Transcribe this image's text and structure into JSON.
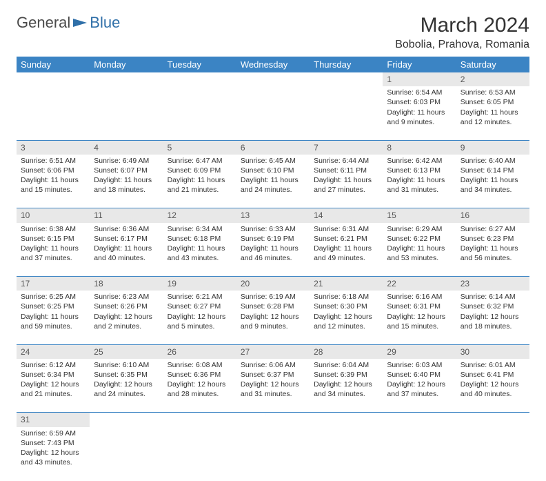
{
  "logo": {
    "text_general": "General",
    "text_blue": "Blue"
  },
  "header": {
    "month_title": "March 2024",
    "location": "Bobolia, Prahova, Romania"
  },
  "colors": {
    "header_bg": "#3b84c4",
    "header_fg": "#ffffff",
    "daynum_bg": "#e8e8e8",
    "row_divider": "#3b84c4",
    "text": "#333333"
  },
  "weekdays": [
    "Sunday",
    "Monday",
    "Tuesday",
    "Wednesday",
    "Thursday",
    "Friday",
    "Saturday"
  ],
  "weeks": [
    [
      null,
      null,
      null,
      null,
      null,
      {
        "n": "1",
        "sr": "Sunrise: 6:54 AM",
        "ss": "Sunset: 6:03 PM",
        "dl": "Daylight: 11 hours and 9 minutes."
      },
      {
        "n": "2",
        "sr": "Sunrise: 6:53 AM",
        "ss": "Sunset: 6:05 PM",
        "dl": "Daylight: 11 hours and 12 minutes."
      }
    ],
    [
      {
        "n": "3",
        "sr": "Sunrise: 6:51 AM",
        "ss": "Sunset: 6:06 PM",
        "dl": "Daylight: 11 hours and 15 minutes."
      },
      {
        "n": "4",
        "sr": "Sunrise: 6:49 AM",
        "ss": "Sunset: 6:07 PM",
        "dl": "Daylight: 11 hours and 18 minutes."
      },
      {
        "n": "5",
        "sr": "Sunrise: 6:47 AM",
        "ss": "Sunset: 6:09 PM",
        "dl": "Daylight: 11 hours and 21 minutes."
      },
      {
        "n": "6",
        "sr": "Sunrise: 6:45 AM",
        "ss": "Sunset: 6:10 PM",
        "dl": "Daylight: 11 hours and 24 minutes."
      },
      {
        "n": "7",
        "sr": "Sunrise: 6:44 AM",
        "ss": "Sunset: 6:11 PM",
        "dl": "Daylight: 11 hours and 27 minutes."
      },
      {
        "n": "8",
        "sr": "Sunrise: 6:42 AM",
        "ss": "Sunset: 6:13 PM",
        "dl": "Daylight: 11 hours and 31 minutes."
      },
      {
        "n": "9",
        "sr": "Sunrise: 6:40 AM",
        "ss": "Sunset: 6:14 PM",
        "dl": "Daylight: 11 hours and 34 minutes."
      }
    ],
    [
      {
        "n": "10",
        "sr": "Sunrise: 6:38 AM",
        "ss": "Sunset: 6:15 PM",
        "dl": "Daylight: 11 hours and 37 minutes."
      },
      {
        "n": "11",
        "sr": "Sunrise: 6:36 AM",
        "ss": "Sunset: 6:17 PM",
        "dl": "Daylight: 11 hours and 40 minutes."
      },
      {
        "n": "12",
        "sr": "Sunrise: 6:34 AM",
        "ss": "Sunset: 6:18 PM",
        "dl": "Daylight: 11 hours and 43 minutes."
      },
      {
        "n": "13",
        "sr": "Sunrise: 6:33 AM",
        "ss": "Sunset: 6:19 PM",
        "dl": "Daylight: 11 hours and 46 minutes."
      },
      {
        "n": "14",
        "sr": "Sunrise: 6:31 AM",
        "ss": "Sunset: 6:21 PM",
        "dl": "Daylight: 11 hours and 49 minutes."
      },
      {
        "n": "15",
        "sr": "Sunrise: 6:29 AM",
        "ss": "Sunset: 6:22 PM",
        "dl": "Daylight: 11 hours and 53 minutes."
      },
      {
        "n": "16",
        "sr": "Sunrise: 6:27 AM",
        "ss": "Sunset: 6:23 PM",
        "dl": "Daylight: 11 hours and 56 minutes."
      }
    ],
    [
      {
        "n": "17",
        "sr": "Sunrise: 6:25 AM",
        "ss": "Sunset: 6:25 PM",
        "dl": "Daylight: 11 hours and 59 minutes."
      },
      {
        "n": "18",
        "sr": "Sunrise: 6:23 AM",
        "ss": "Sunset: 6:26 PM",
        "dl": "Daylight: 12 hours and 2 minutes."
      },
      {
        "n": "19",
        "sr": "Sunrise: 6:21 AM",
        "ss": "Sunset: 6:27 PM",
        "dl": "Daylight: 12 hours and 5 minutes."
      },
      {
        "n": "20",
        "sr": "Sunrise: 6:19 AM",
        "ss": "Sunset: 6:28 PM",
        "dl": "Daylight: 12 hours and 9 minutes."
      },
      {
        "n": "21",
        "sr": "Sunrise: 6:18 AM",
        "ss": "Sunset: 6:30 PM",
        "dl": "Daylight: 12 hours and 12 minutes."
      },
      {
        "n": "22",
        "sr": "Sunrise: 6:16 AM",
        "ss": "Sunset: 6:31 PM",
        "dl": "Daylight: 12 hours and 15 minutes."
      },
      {
        "n": "23",
        "sr": "Sunrise: 6:14 AM",
        "ss": "Sunset: 6:32 PM",
        "dl": "Daylight: 12 hours and 18 minutes."
      }
    ],
    [
      {
        "n": "24",
        "sr": "Sunrise: 6:12 AM",
        "ss": "Sunset: 6:34 PM",
        "dl": "Daylight: 12 hours and 21 minutes."
      },
      {
        "n": "25",
        "sr": "Sunrise: 6:10 AM",
        "ss": "Sunset: 6:35 PM",
        "dl": "Daylight: 12 hours and 24 minutes."
      },
      {
        "n": "26",
        "sr": "Sunrise: 6:08 AM",
        "ss": "Sunset: 6:36 PM",
        "dl": "Daylight: 12 hours and 28 minutes."
      },
      {
        "n": "27",
        "sr": "Sunrise: 6:06 AM",
        "ss": "Sunset: 6:37 PM",
        "dl": "Daylight: 12 hours and 31 minutes."
      },
      {
        "n": "28",
        "sr": "Sunrise: 6:04 AM",
        "ss": "Sunset: 6:39 PM",
        "dl": "Daylight: 12 hours and 34 minutes."
      },
      {
        "n": "29",
        "sr": "Sunrise: 6:03 AM",
        "ss": "Sunset: 6:40 PM",
        "dl": "Daylight: 12 hours and 37 minutes."
      },
      {
        "n": "30",
        "sr": "Sunrise: 6:01 AM",
        "ss": "Sunset: 6:41 PM",
        "dl": "Daylight: 12 hours and 40 minutes."
      }
    ],
    [
      {
        "n": "31",
        "sr": "Sunrise: 6:59 AM",
        "ss": "Sunset: 7:43 PM",
        "dl": "Daylight: 12 hours and 43 minutes."
      },
      null,
      null,
      null,
      null,
      null,
      null
    ]
  ]
}
